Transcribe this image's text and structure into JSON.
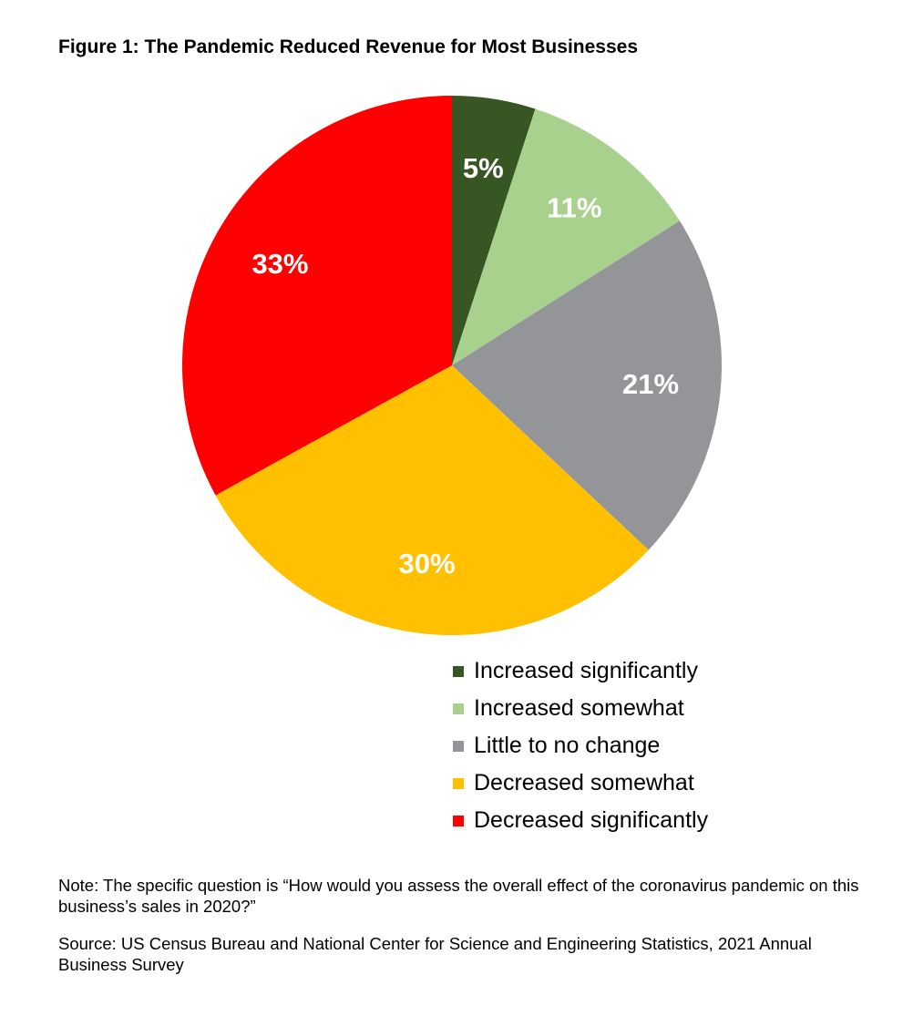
{
  "chart_data": {
    "type": "pie",
    "title": "Figure 1: The Pandemic Reduced Revenue for Most Businesses",
    "categories": [
      "Increased significantly",
      "Increased somewhat",
      "Little to no change",
      "Decreased somewhat",
      "Decreased significantly"
    ],
    "values": [
      5,
      11,
      21,
      30,
      33
    ],
    "data_labels": [
      "5%",
      "11%",
      "21%",
      "30%",
      "33%"
    ],
    "colors": [
      "#375623",
      "#a9d18e",
      "#939598",
      "#ffc000",
      "#ff0000"
    ],
    "start_angle": "top",
    "direction": "clockwise",
    "legend_position": "bottom-right"
  },
  "note": "Note: The specific question is “How would you assess the overall effect of the coronavirus pandemic on this business’s sales in 2020?”",
  "source": "Source: US Census Bureau and National Center for Science and Engineering Statistics, 2021 Annual Business Survey"
}
